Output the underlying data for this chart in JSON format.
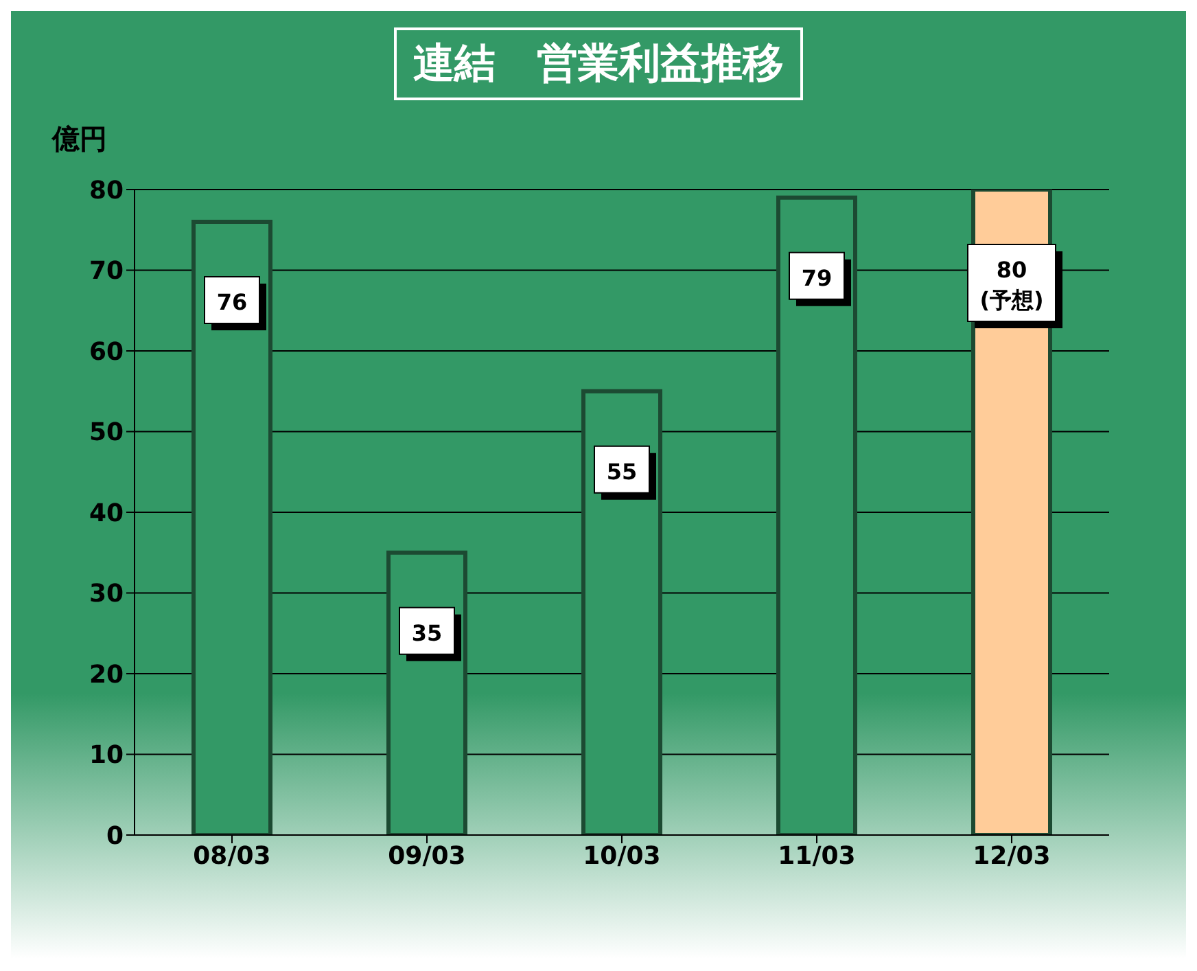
{
  "chart_data": {
    "type": "bar",
    "title": "連結　営業利益推移",
    "ylabel": "億円",
    "categories": [
      "08/03",
      "09/03",
      "10/03",
      "11/03",
      "12/03"
    ],
    "values": [
      76,
      35,
      55,
      79,
      80
    ],
    "colors": [
      "#339966",
      "#339966",
      "#339966",
      "#339966",
      "#ffcc99"
    ],
    "value_labels": [
      "76",
      "35",
      "55",
      "79",
      "80\n(予想)"
    ],
    "ylim": [
      0,
      80
    ],
    "yticks": [
      0,
      10,
      20,
      30,
      40,
      50,
      60,
      70,
      80
    ],
    "grid": "y"
  }
}
